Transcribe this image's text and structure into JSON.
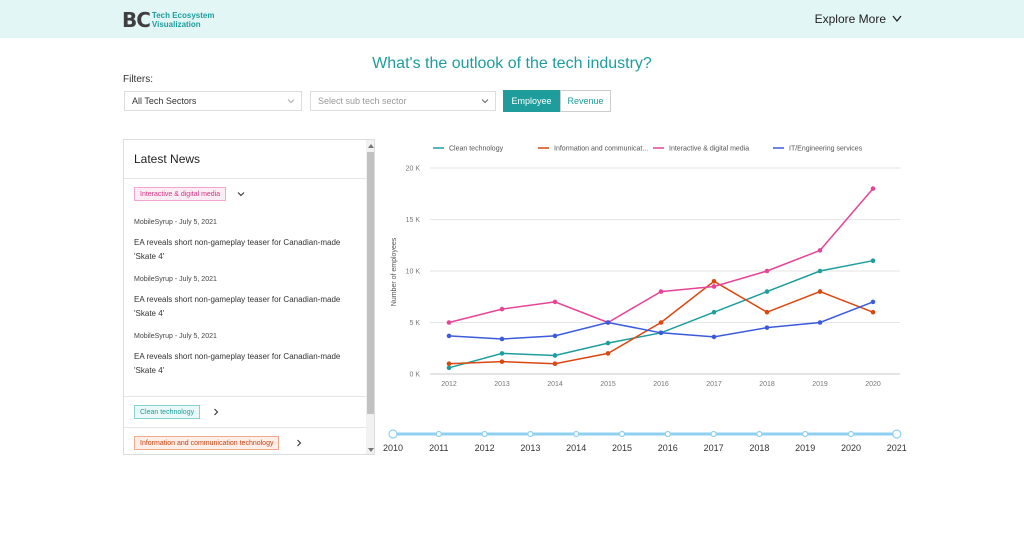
{
  "header": {
    "logo_mark": "BC",
    "logo_line1": "Tech Ecosystem",
    "logo_line2": "Visualization",
    "explore_label": "Explore More"
  },
  "page_title": "What's the outlook of the tech industry?",
  "filters": {
    "label": "Filters:",
    "sector_value": "All Tech Sectors",
    "sub_sector_placeholder": "Select sub tech sector",
    "toggle": {
      "employee": "Employee",
      "revenue": "Revenue",
      "active": "employee"
    }
  },
  "news": {
    "title": "Latest News",
    "groups": [
      {
        "tag": "Interactive & digital media",
        "expanded": true,
        "articles": [
          {
            "source": "MobileSyrup - July 5, 2021",
            "headline": "EA reveals short non-gameplay teaser for Canadian-made 'Skate 4'"
          },
          {
            "source": "MobileSyrup - July 5, 2021",
            "headline": "EA reveals short non-gameplay teaser for Canadian-made 'Skate 4'"
          },
          {
            "source": "MobileSyrup - July 5, 2021",
            "headline": "EA reveals short non-gameplay teaser for Canadian-made 'Skate 4'"
          }
        ]
      },
      {
        "tag": "Clean technology",
        "expanded": false
      },
      {
        "tag": "Information and communication technology",
        "expanded": false
      }
    ]
  },
  "chart_data": {
    "type": "line",
    "ylabel": "Number of employees",
    "xlabel": "",
    "x": [
      "2012",
      "2013",
      "2014",
      "2015",
      "2016",
      "2017",
      "2018",
      "2019",
      "2020"
    ],
    "y_ticks": [
      "0 K",
      "5 K",
      "10 K",
      "15 K",
      "20 K"
    ],
    "ylim": [
      0,
      20000
    ],
    "grid": true,
    "legend_position": "top",
    "series": [
      {
        "name": "Clean technology",
        "color": "#1f9d9d",
        "values": [
          600,
          2000,
          1800,
          3000,
          4000,
          6000,
          8000,
          10000,
          11000
        ]
      },
      {
        "name": "Information and communicat...",
        "color": "#d9480f",
        "values": [
          1000,
          1200,
          1000,
          2000,
          5000,
          9000,
          6000,
          8000,
          6000
        ]
      },
      {
        "name": "Interactive & digital media",
        "color": "#e64497",
        "values": [
          5000,
          6300,
          7000,
          5000,
          8000,
          8500,
          10000,
          12000,
          18000
        ]
      },
      {
        "name": "IT/Engineering services",
        "color": "#3b5bdb",
        "values": [
          3700,
          3400,
          3700,
          5000,
          4000,
          3600,
          4500,
          5000,
          7000
        ]
      }
    ]
  },
  "timeline": {
    "years": [
      "2010",
      "2011",
      "2012",
      "2013",
      "2014",
      "2015",
      "2016",
      "2017",
      "2018",
      "2019",
      "2020",
      "2021"
    ],
    "color": "#8fd0f0"
  }
}
